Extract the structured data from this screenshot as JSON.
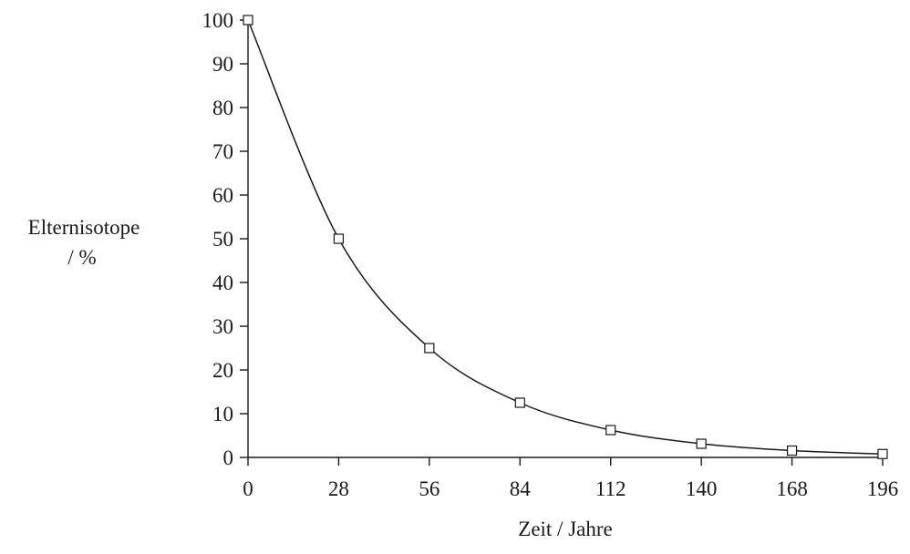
{
  "chart_data": {
    "type": "line",
    "title": "",
    "xlabel": "Zeit / Jahre",
    "ylabel_line1": "Elternisotope",
    "ylabel_line2": "/ %",
    "xlim": [
      0,
      196
    ],
    "ylim": [
      0,
      100
    ],
    "x_ticks": [
      0,
      28,
      56,
      84,
      112,
      140,
      168,
      196
    ],
    "y_ticks": [
      0,
      10,
      20,
      30,
      40,
      50,
      60,
      70,
      80,
      90,
      100
    ],
    "grid": false,
    "legend": "none",
    "series": [
      {
        "x": [
          0,
          28,
          56,
          84,
          112,
          140,
          168,
          196
        ],
        "y": [
          100,
          50,
          25,
          12.5,
          6.25,
          3.125,
          1.5625,
          0.78
        ]
      }
    ]
  }
}
